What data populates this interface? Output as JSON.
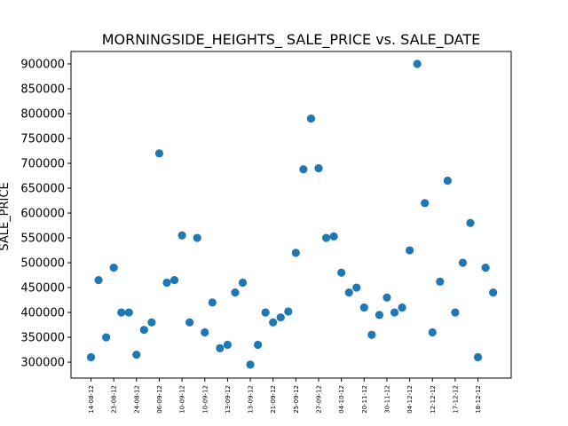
{
  "chart_data": {
    "type": "scatter",
    "title": "MORNINGSIDE_HEIGHTS_ SALE_PRICE vs. SALE_DATE",
    "xlabel": "",
    "ylabel": "SALE_PRICE",
    "ylim": [
      268000,
      925000
    ],
    "yticks": [
      300000,
      350000,
      400000,
      450000,
      500000,
      550000,
      600000,
      650000,
      700000,
      750000,
      800000,
      850000,
      900000
    ],
    "xtick_labels": [
      "14-08-12",
      "23-08-12",
      "24-08-12",
      "06-09-12",
      "10-09-12",
      "10-09-12",
      "13-09-12",
      "13-09-12",
      "21-09-12",
      "25-09-12",
      "27-09-12",
      "04-10-12",
      "20-11-12",
      "30-11-12",
      "04-12-12",
      "12-12-12",
      "17-12-12",
      "18-12-12"
    ],
    "grid": false,
    "series_color": "#1f77b4",
    "points": [
      {
        "x": 0,
        "y": 310000
      },
      {
        "x": 1,
        "y": 465000
      },
      {
        "x": 2,
        "y": 350000
      },
      {
        "x": 3,
        "y": 490000
      },
      {
        "x": 4,
        "y": 400000
      },
      {
        "x": 5,
        "y": 400000
      },
      {
        "x": 6,
        "y": 315000
      },
      {
        "x": 7,
        "y": 365000
      },
      {
        "x": 8,
        "y": 380000
      },
      {
        "x": 9,
        "y": 720000
      },
      {
        "x": 10,
        "y": 460000
      },
      {
        "x": 11,
        "y": 465000
      },
      {
        "x": 12,
        "y": 555000
      },
      {
        "x": 13,
        "y": 380000
      },
      {
        "x": 14,
        "y": 550000
      },
      {
        "x": 15,
        "y": 360000
      },
      {
        "x": 16,
        "y": 420000
      },
      {
        "x": 17,
        "y": 328000
      },
      {
        "x": 18,
        "y": 335000
      },
      {
        "x": 19,
        "y": 440000
      },
      {
        "x": 20,
        "y": 460000
      },
      {
        "x": 21,
        "y": 295000
      },
      {
        "x": 22,
        "y": 335000
      },
      {
        "x": 23,
        "y": 400000
      },
      {
        "x": 24,
        "y": 380000
      },
      {
        "x": 25,
        "y": 390000
      },
      {
        "x": 26,
        "y": 402000
      },
      {
        "x": 27,
        "y": 520000
      },
      {
        "x": 28,
        "y": 688000
      },
      {
        "x": 29,
        "y": 790000
      },
      {
        "x": 30,
        "y": 690000
      },
      {
        "x": 31,
        "y": 550000
      },
      {
        "x": 32,
        "y": 553000
      },
      {
        "x": 33,
        "y": 480000
      },
      {
        "x": 34,
        "y": 440000
      },
      {
        "x": 35,
        "y": 450000
      },
      {
        "x": 36,
        "y": 410000
      },
      {
        "x": 37,
        "y": 355000
      },
      {
        "x": 38,
        "y": 395000
      },
      {
        "x": 39,
        "y": 430000
      },
      {
        "x": 40,
        "y": 400000
      },
      {
        "x": 41,
        "y": 410000
      },
      {
        "x": 42,
        "y": 525000
      },
      {
        "x": 43,
        "y": 900000
      },
      {
        "x": 44,
        "y": 620000
      },
      {
        "x": 45,
        "y": 360000
      },
      {
        "x": 46,
        "y": 462000
      },
      {
        "x": 47,
        "y": 665000
      },
      {
        "x": 48,
        "y": 400000
      },
      {
        "x": 49,
        "y": 500000
      },
      {
        "x": 50,
        "y": 580000
      },
      {
        "x": 51,
        "y": 310000
      },
      {
        "x": 52,
        "y": 490000
      },
      {
        "x": 53,
        "y": 440000
      }
    ]
  }
}
